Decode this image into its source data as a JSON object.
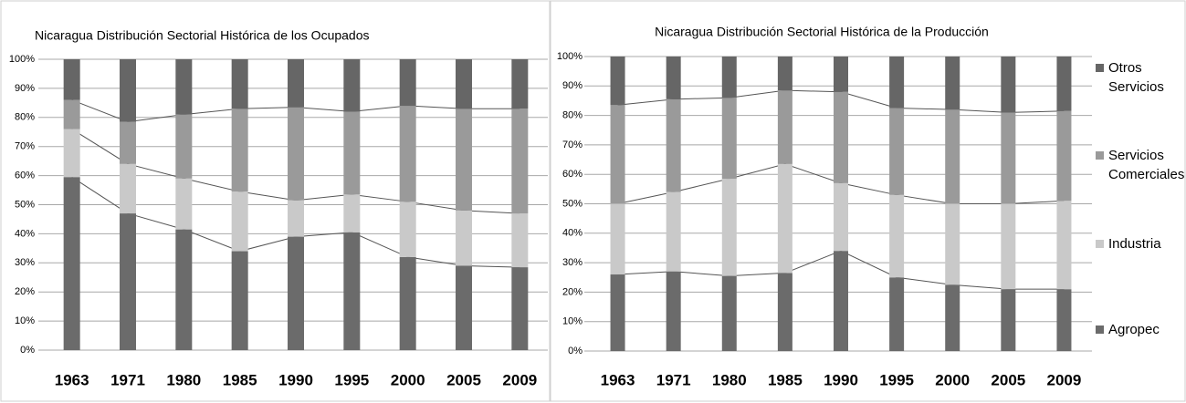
{
  "chart_data": [
    {
      "type": "stacked_bar",
      "title": "Nicaragua Distribución Sectorial Histórica de los Ocupados",
      "categories": [
        "1963",
        "1971",
        "1980",
        "1985",
        "1990",
        "1995",
        "2000",
        "2005",
        "2009"
      ],
      "series": [
        {
          "name": "Agropec",
          "color": "#6b6b6b",
          "values": [
            59.5,
            47,
            41.5,
            34,
            39,
            40.5,
            32,
            29,
            28.5
          ]
        },
        {
          "name": "Industria",
          "color": "#c9c9c9",
          "values": [
            16.5,
            17,
            17.5,
            20.5,
            12.5,
            13,
            19,
            19,
            18.5
          ]
        },
        {
          "name": "Servicios Comerciales",
          "color": "#9a9a9a",
          "values": [
            10,
            14.5,
            22,
            28.5,
            32,
            28.5,
            33,
            35,
            36
          ]
        },
        {
          "name": "Otros Servicios",
          "color": "#666666",
          "values": [
            14,
            21.5,
            19,
            17,
            16.5,
            18,
            16,
            17,
            17
          ]
        }
      ],
      "ylim": [
        0,
        100
      ],
      "yticks": [
        {
          "value": 0,
          "label": "0%"
        },
        {
          "value": 10,
          "label": "10%"
        },
        {
          "value": 20,
          "label": "20%"
        },
        {
          "value": 30,
          "label": "30%"
        },
        {
          "value": 40,
          "label": "40%"
        },
        {
          "value": 50,
          "label": "50%"
        },
        {
          "value": 60,
          "label": "60%"
        },
        {
          "value": 70,
          "label": "70%"
        },
        {
          "value": 80,
          "label": "80%"
        },
        {
          "value": 90,
          "label": "90%"
        },
        {
          "value": 100,
          "label": "100%"
        }
      ],
      "grid": true,
      "legend": false
    },
    {
      "type": "stacked_bar",
      "title": "Nicaragua Distribución Sectorial Histórica de la Producción",
      "categories": [
        "1963",
        "1971",
        "1980",
        "1985",
        "1990",
        "1995",
        "2000",
        "2005",
        "2009"
      ],
      "series": [
        {
          "name": "Agropec",
          "color": "#6b6b6b",
          "values": [
            26,
            27,
            25.5,
            26.5,
            34,
            25,
            22.5,
            21,
            21
          ]
        },
        {
          "name": "Industria",
          "color": "#c9c9c9",
          "values": [
            24,
            27,
            33,
            37,
            23,
            28,
            27.5,
            29,
            30
          ]
        },
        {
          "name": "Servicios Comerciales",
          "color": "#9a9a9a",
          "values": [
            33.5,
            31.5,
            27.5,
            25,
            31,
            29.5,
            32,
            31,
            30.5
          ]
        },
        {
          "name": "Otros Servicios",
          "color": "#666666",
          "values": [
            16.5,
            14.5,
            14,
            11.5,
            12,
            17.5,
            18,
            19,
            18.5
          ]
        }
      ],
      "ylim": [
        0,
        100
      ],
      "yticks": [
        {
          "value": 0,
          "label": "0%"
        },
        {
          "value": 10,
          "label": "10%"
        },
        {
          "value": 20,
          "label": "20%"
        },
        {
          "value": 30,
          "label": "30%"
        },
        {
          "value": 40,
          "label": "40%"
        },
        {
          "value": 50,
          "label": "50%"
        },
        {
          "value": 60,
          "label": "60%"
        },
        {
          "value": 70,
          "label": "70%"
        },
        {
          "value": 80,
          "label": "80%"
        },
        {
          "value": 90,
          "label": "90%"
        },
        {
          "value": 100,
          "label": "100%"
        }
      ],
      "grid": true,
      "legend": true,
      "legend_position": "right"
    }
  ]
}
